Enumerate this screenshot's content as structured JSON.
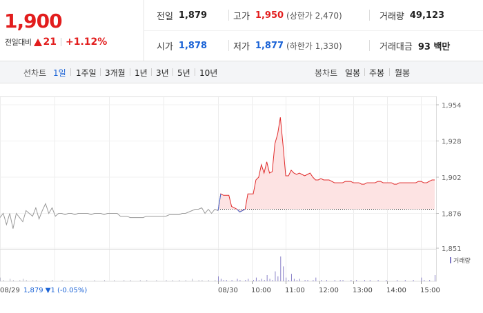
{
  "summary": {
    "price": "1,900",
    "change_label": "전일대비",
    "change_amount": "21",
    "change_pct": "+1.12%",
    "stats": [
      {
        "key": "전일",
        "value": "1,879",
        "color": "normal"
      },
      {
        "key": "고가",
        "value": "1,950",
        "color": "red",
        "sub": "(상한가 2,470)"
      },
      {
        "key": "거래량",
        "value": "49,123",
        "color": "normal"
      },
      {
        "key": "시가",
        "value": "1,878",
        "color": "blue"
      },
      {
        "key": "저가",
        "value": "1,877",
        "color": "blue",
        "sub": "(하한가 1,330)"
      },
      {
        "key": "거래대금",
        "value": "93 백만",
        "color": "normal"
      }
    ]
  },
  "tabs": {
    "line_title": "선차트",
    "line_tabs": [
      "1일",
      "1주일",
      "3개월",
      "1년",
      "3년",
      "5년",
      "10년"
    ],
    "active_line_tab": "1일",
    "candle_title": "봉차트",
    "candle_tabs": [
      "일봉",
      "주봉",
      "월봉"
    ]
  },
  "chart_data": {
    "type": "line",
    "y_ticks": [
      "1,954",
      "1,928",
      "1,902",
      "1,876",
      "1,851"
    ],
    "ylim": [
      1851,
      1954
    ],
    "prev_close": 1879,
    "volume_legend": "거래량",
    "bottom_left_date": "08/29",
    "bottom_left_info": "1,879 ▼1 (-0.05%)",
    "x_ticks": [
      "08/30",
      "10:00",
      "11:00",
      "12:00",
      "13:00",
      "14:00",
      "15:00"
    ],
    "prev_day_series": {
      "name": "",
      "color": "#9a9a9a",
      "y": [
        1873,
        1876,
        1868,
        1876,
        1865,
        1876,
        1873,
        1870,
        1878,
        1876,
        1874,
        1880,
        1872,
        1878,
        1883,
        1876,
        1880,
        1874,
        1876,
        1876,
        1875,
        1876,
        1876,
        1875,
        1876,
        1876,
        1876,
        1876,
        1875,
        1876,
        1876,
        1876,
        1875,
        1876,
        1876,
        1876,
        1876,
        1874,
        1874,
        1874,
        1873,
        1873,
        1873,
        1873,
        1873,
        1874,
        1874,
        1874,
        1874,
        1874,
        1874,
        1874,
        1875,
        1875,
        1875,
        1875,
        1876,
        1876,
        1877,
        1878,
        1879,
        1879,
        1880,
        1876,
        1879,
        1876,
        1879,
        1878
      ]
    },
    "today_series": {
      "name": "",
      "up_color": "#e02a2a",
      "down_color": "#3a6fd8",
      "y": [
        1878,
        1890,
        1889,
        1889,
        1889,
        1881,
        1880,
        1879,
        1877,
        1878,
        1879,
        1890,
        1890,
        1890,
        1900,
        1902,
        1911,
        1905,
        1913,
        1905,
        1906,
        1926,
        1933,
        1945,
        1925,
        1903,
        1903,
        1907,
        1905,
        1904,
        1905,
        1904,
        1903,
        1904,
        1905,
        1902,
        1900,
        1900,
        1901,
        1900,
        1900,
        1900,
        1899,
        1898,
        1898,
        1898,
        1898,
        1899,
        1899,
        1899,
        1898,
        1898,
        1898,
        1897,
        1897,
        1898,
        1898,
        1898,
        1898,
        1899,
        1899,
        1898,
        1898,
        1898,
        1898,
        1897,
        1897,
        1898,
        1898,
        1898,
        1898,
        1898,
        1898,
        1898,
        1899,
        1899,
        1898,
        1898,
        1899,
        1900,
        1900
      ]
    },
    "volume_prev": [
      3,
      1,
      0,
      2,
      1,
      0,
      1,
      2,
      1,
      0,
      1,
      1,
      0,
      0,
      1,
      0,
      1,
      0,
      0,
      1,
      0,
      0,
      1,
      0,
      0,
      1,
      0,
      0,
      0,
      1,
      0,
      0,
      1,
      0,
      0,
      1,
      0,
      0,
      1,
      0,
      1,
      0,
      0,
      1,
      0,
      1,
      0,
      0,
      1,
      0,
      0,
      1,
      0,
      1,
      0,
      1,
      0,
      1,
      0,
      2,
      0,
      1,
      1,
      0,
      1,
      0,
      1,
      0
    ],
    "volume_today": [
      4,
      2,
      1,
      1,
      0,
      1,
      0,
      2,
      1,
      0,
      1,
      2,
      0,
      1,
      3,
      1,
      2,
      1,
      5,
      2,
      1,
      8,
      4,
      20,
      12,
      3,
      1,
      6,
      2,
      1,
      2,
      0,
      1,
      1,
      0,
      1,
      3,
      0,
      1,
      0,
      1,
      0,
      0,
      1,
      0,
      1,
      1,
      0,
      0,
      1,
      0,
      1,
      0,
      0,
      1,
      0,
      1,
      0,
      0,
      1,
      0,
      0,
      1,
      0,
      0,
      0,
      1,
      0,
      0,
      1,
      0,
      0,
      1,
      0,
      0,
      3,
      1,
      0,
      1,
      0,
      5
    ]
  }
}
